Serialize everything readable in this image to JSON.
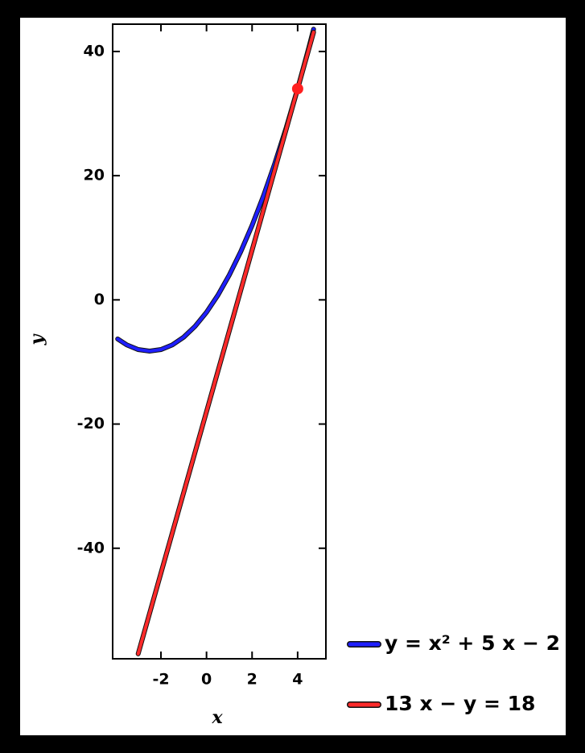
{
  "chart_data": {
    "type": "line",
    "series": [
      {
        "name": "y = x² + 5 x − 2",
        "color": "#1f1fff",
        "x": [
          -3.9,
          -3.5,
          -3,
          -2.5,
          -2,
          -1.5,
          -1,
          -0.5,
          0,
          0.5,
          1,
          1.5,
          2,
          2.5,
          3,
          3.5,
          4,
          4.5,
          4.7
        ],
        "values": [
          -6.29,
          -7.25,
          -8,
          -8.25,
          -8,
          -7.25,
          -6,
          -4.25,
          -2,
          0.75,
          4,
          7.75,
          12,
          16.75,
          22,
          27.75,
          34,
          40.75,
          43.59
        ]
      },
      {
        "name": "13 x − y = 18",
        "color": "#ff2a2a",
        "x": [
          -3,
          4.7
        ],
        "values": [
          -57,
          43.1
        ]
      }
    ],
    "points": [
      {
        "x": 4,
        "y": 34,
        "color": "#ff2020"
      }
    ],
    "x_label": "x",
    "y_label": "y",
    "xlim": [
      -4.12,
      5.24
    ],
    "ylim": [
      -57.8,
      44.4
    ],
    "xticks": [
      -2,
      0,
      2,
      4
    ],
    "yticks": [
      -40,
      -20,
      0,
      20,
      40
    ]
  }
}
